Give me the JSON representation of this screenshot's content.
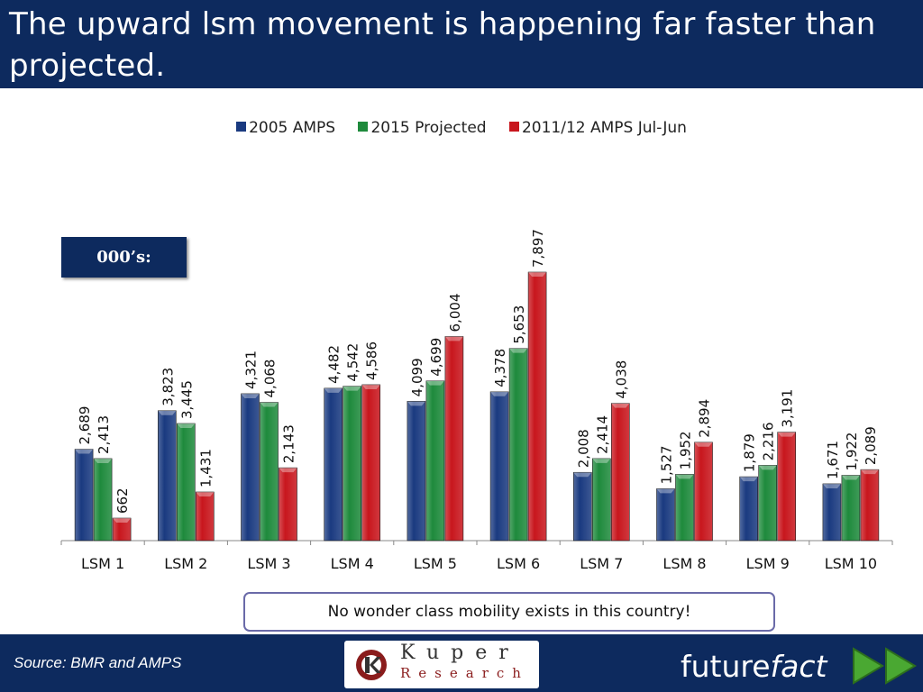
{
  "title": "The upward lsm movement is happening far faster than projected.",
  "unit_label": "000’s:",
  "note": "No wonder class mobility exists in this country!",
  "source": "Source: BMR and AMPS",
  "logos": {
    "kuper_top": "Kuper",
    "kuper_bottom": "Research",
    "futurefact_plain": "future",
    "futurefact_italic": "fact"
  },
  "colors": {
    "header_bg": "#0d2a5e",
    "series_2005": "#1a3a80",
    "series_2015": "#1e8a3c",
    "series_2011": "#c8161d"
  },
  "chart_data": {
    "type": "bar",
    "categories": [
      "LSM 1",
      "LSM 2",
      "LSM 3",
      "LSM 4",
      "LSM 5",
      "LSM 6",
      "LSM 7",
      "LSM 8",
      "LSM 9",
      "LSM 10"
    ],
    "series": [
      {
        "name": "2005 AMPS",
        "color": "#1a3a80",
        "values": [
          2689,
          3823,
          4321,
          4482,
          4099,
          4378,
          2008,
          1527,
          1879,
          1671
        ],
        "labels": [
          "2,689",
          "3,823",
          "4,321",
          "4,482",
          "4,099",
          "4,378",
          "2,008",
          "1,527",
          "1,879",
          "1,671"
        ]
      },
      {
        "name": "2015 Projected",
        "color": "#1e8a3c",
        "values": [
          2413,
          3445,
          4068,
          4542,
          4699,
          5653,
          2414,
          1952,
          2216,
          1922
        ],
        "labels": [
          "2,413",
          "3,445",
          "4,068",
          "4,542",
          "4,699",
          "5,653",
          "2,414",
          "1,952",
          "2,216",
          "1,922"
        ]
      },
      {
        "name": "2011/12 AMPS Jul-Jun",
        "color": "#c8161d",
        "values": [
          662,
          1431,
          2143,
          4586,
          6004,
          7897,
          4038,
          2894,
          3191,
          2089
        ],
        "labels": [
          "662",
          "1,431",
          "2,143",
          "4,586",
          "6,004",
          "7,897",
          "4,038",
          "2,894",
          "3,191",
          "2,089"
        ]
      }
    ],
    "ylim": [
      0,
      7897
    ],
    "grid": false,
    "legend": "top"
  }
}
